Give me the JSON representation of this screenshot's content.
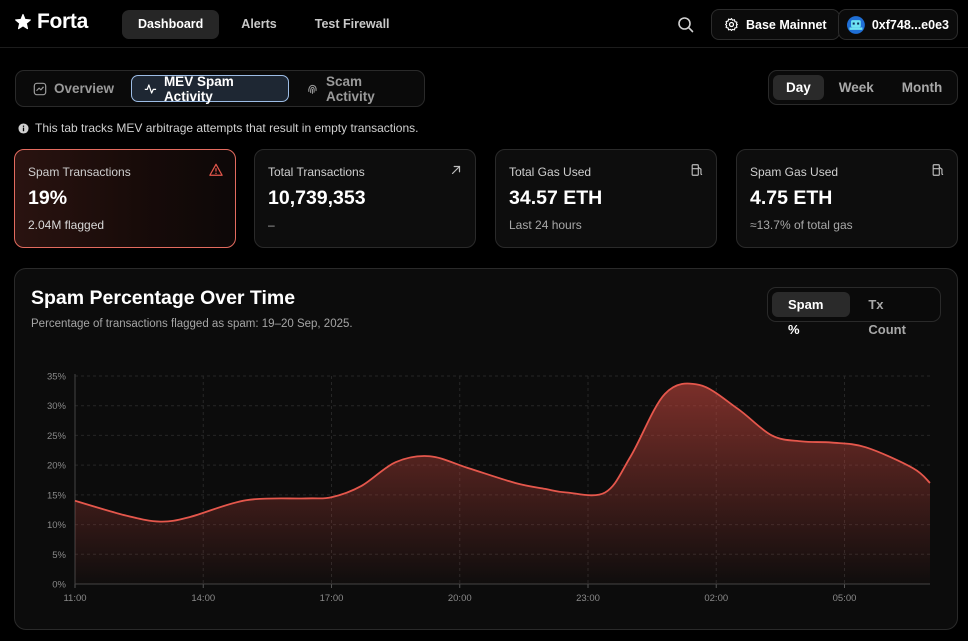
{
  "app": {
    "logo_text": "Forta"
  },
  "nav": {
    "items": [
      "Dashboard",
      "Alerts",
      "Test Firewall"
    ],
    "active": "Dashboard"
  },
  "header": {
    "network_label": "Base Mainnet",
    "wallet_label": "0xf748...e0e3"
  },
  "tabs": {
    "items": [
      "Overview",
      "MEV Spam Activity",
      "Scam Activity"
    ],
    "active": "MEV Spam Activity"
  },
  "time_range": {
    "items": [
      "Day",
      "Week",
      "Month"
    ],
    "active": "Day"
  },
  "info_text": "This tab tracks MEV arbitrage attempts that result in empty transactions.",
  "cards": [
    {
      "title": "Spam Transactions",
      "value": "19%",
      "sub": "2.04M flagged",
      "icon": "warning-icon"
    },
    {
      "title": "Total Transactions",
      "value": "10,739,353",
      "sub": "–",
      "icon": "arrow-up-right-icon"
    },
    {
      "title": "Total Gas Used",
      "value": "34.57 ETH",
      "sub": "Last 24 hours",
      "icon": "fuel-pump-icon"
    },
    {
      "title": "Spam Gas Used",
      "value": "4.75 ETH",
      "sub": "≈13.7% of total gas",
      "icon": "fuel-pump-icon"
    }
  ],
  "chart_panel": {
    "title": "Spam Percentage Over Time",
    "subtitle": "Percentage of transactions flagged as spam: 19–20 Sep, 2025.",
    "metric_toggle": [
      "Spam %",
      "Tx Count"
    ],
    "active_metric": "Spam %"
  },
  "colors": {
    "accent_red": "#e5574c",
    "alert_border": "#e36b5f",
    "active_tab_border": "#9dbde6"
  },
  "chart_data": {
    "type": "area",
    "title": "Spam Percentage Over Time",
    "xlabel": "",
    "ylabel": "",
    "x_tick_labels": [
      "11:00",
      "14:00",
      "17:00",
      "20:00",
      "23:00",
      "02:00",
      "05:00"
    ],
    "y_tick_labels": [
      "0%",
      "5%",
      "10%",
      "15%",
      "20%",
      "25%",
      "30%",
      "35%"
    ],
    "ylim": [
      0,
      35
    ],
    "x_unit": "hours since 11:00",
    "grid": "dashed vertical and horizontal",
    "series": [
      {
        "x": [
          0,
          1.2,
          2,
          2.7,
          4,
          5.4,
          6,
          6.7,
          7.5,
          8.3,
          9.2,
          10.3,
          11,
          11.5,
          12.4,
          13,
          13.8,
          14.6,
          15.5,
          16.3,
          17,
          17.7,
          18.5,
          19.6,
          20
        ],
        "values": [
          14,
          11.5,
          10.5,
          11.3,
          14.1,
          14.4,
          14.6,
          16.5,
          20.5,
          21.5,
          19.5,
          17,
          16,
          15.4,
          15.4,
          21.5,
          32,
          33.5,
          29.5,
          25,
          24,
          23.8,
          23,
          19.5,
          17
        ]
      }
    ]
  }
}
